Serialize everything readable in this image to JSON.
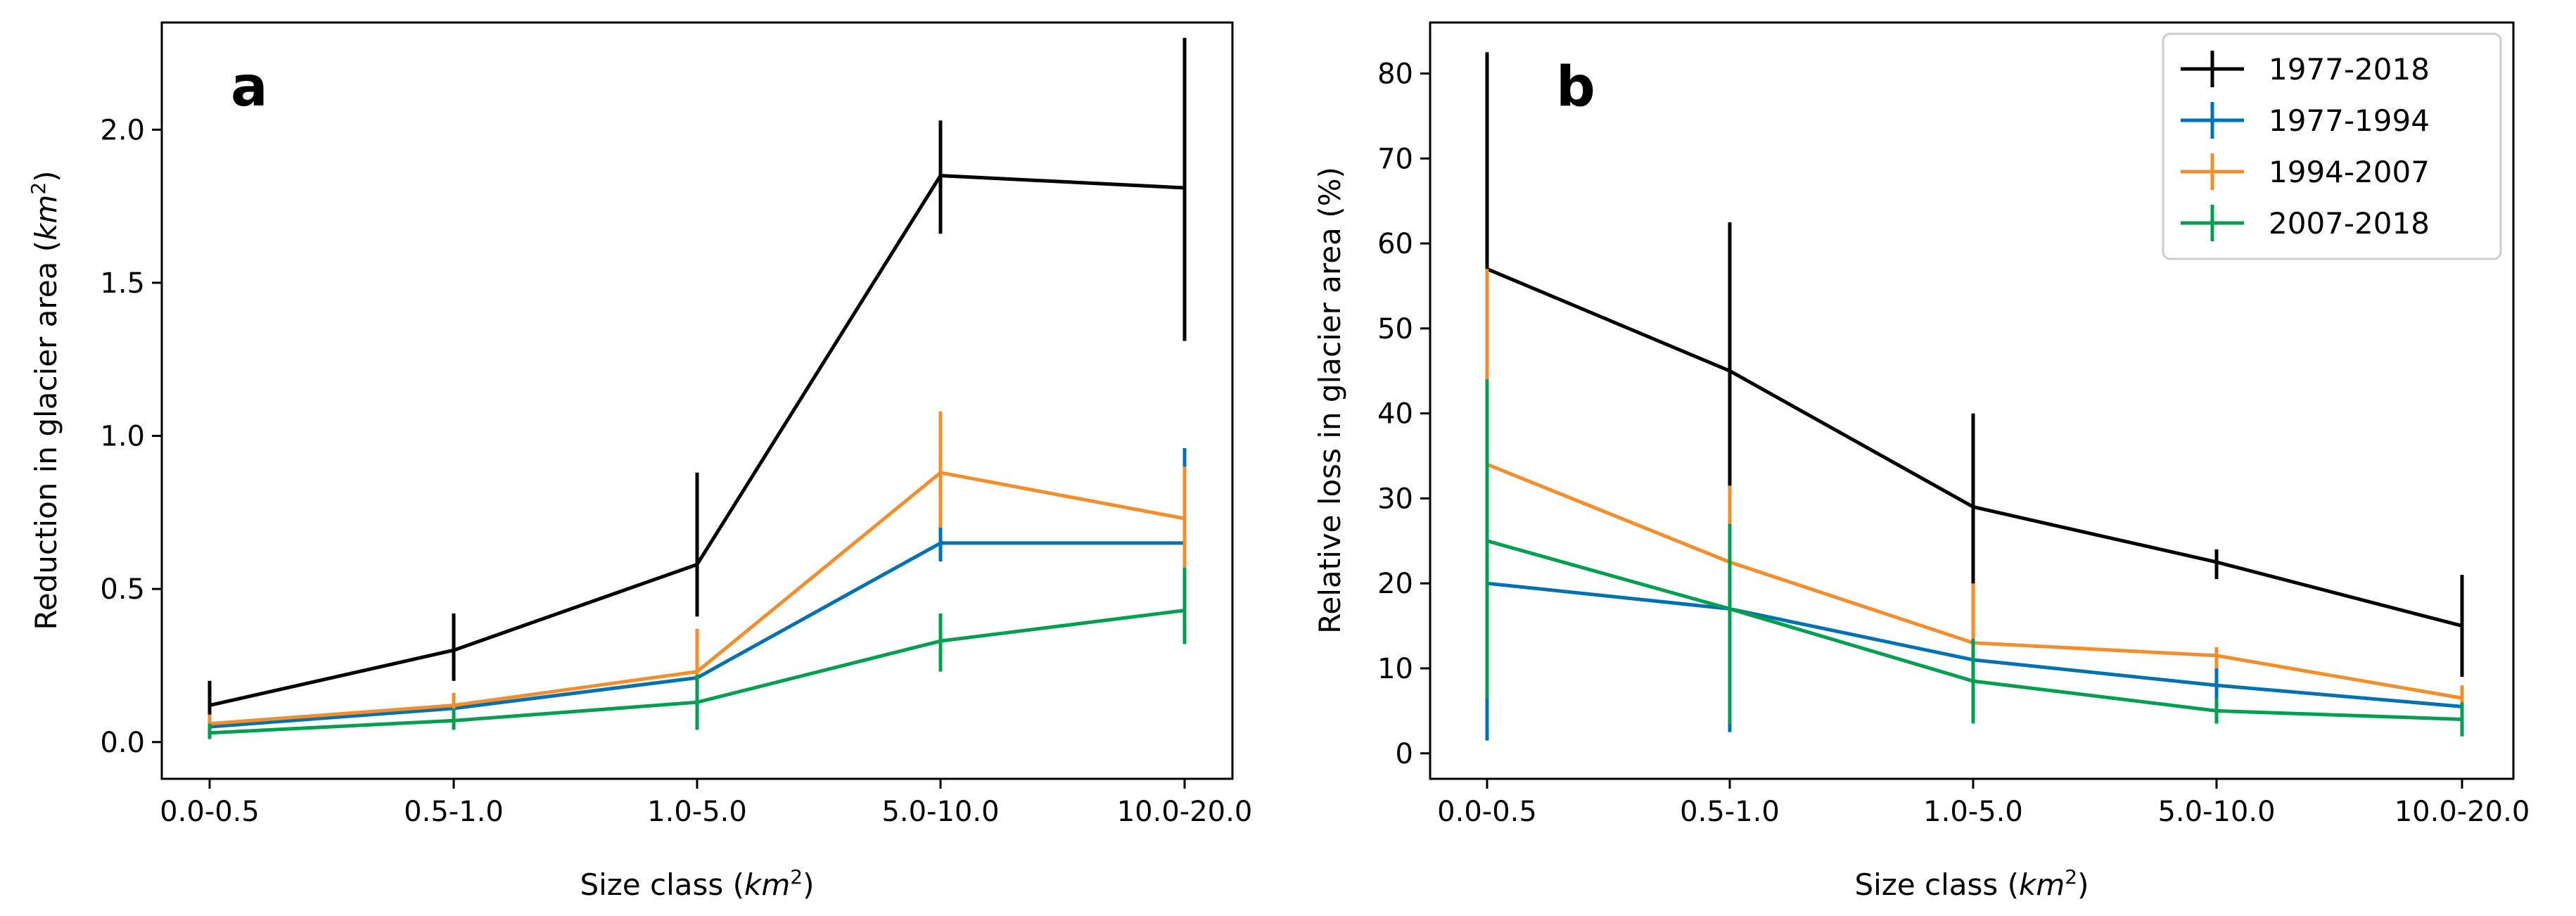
{
  "chart_data": [
    {
      "type": "line",
      "panel_label": "a",
      "categories": [
        "0.0-0.5",
        "0.5-1.0",
        "1.0-5.0",
        "5.0-10.0",
        "10.0-20.0"
      ],
      "xlabel": "Size class",
      "xlabel_unit": "km",
      "xlabel_unit_sup": "2",
      "ylabel": "Reduction in glacier area",
      "ylabel_unit": "km",
      "ylabel_unit_sup": "2",
      "ylim": [
        -0.12,
        2.35
      ],
      "yticks": [
        0.0,
        0.5,
        1.0,
        1.5,
        2.0
      ],
      "ytick_labels": [
        "0.0",
        "0.5",
        "1.0",
        "1.5",
        "2.0"
      ],
      "series": [
        {
          "name": "1977-2018",
          "color": "#000000",
          "values": [
            0.12,
            0.3,
            0.58,
            1.85,
            1.81
          ],
          "err_low": [
            0.03,
            0.2,
            0.41,
            1.66,
            1.31
          ],
          "err_high": [
            0.2,
            0.42,
            0.88,
            2.03,
            2.3
          ]
        },
        {
          "name": "1977-1994",
          "color": "#0072b2",
          "values": [
            0.05,
            0.11,
            0.21,
            0.65,
            0.65
          ],
          "err_low": [
            0.02,
            0.07,
            0.16,
            0.59,
            0.57
          ],
          "err_high": [
            0.08,
            0.16,
            0.27,
            0.72,
            0.96
          ]
        },
        {
          "name": "1994-2007",
          "color": "#f28e2b",
          "values": [
            0.06,
            0.12,
            0.23,
            0.88,
            0.73
          ],
          "err_low": [
            0.03,
            0.08,
            0.17,
            0.7,
            0.57
          ],
          "err_high": [
            0.09,
            0.16,
            0.37,
            1.08,
            0.9
          ]
        },
        {
          "name": "2007-2018",
          "color": "#00a050",
          "values": [
            0.03,
            0.07,
            0.13,
            0.33,
            0.43
          ],
          "err_low": [
            0.01,
            0.04,
            0.04,
            0.23,
            0.32
          ],
          "err_high": [
            0.06,
            0.11,
            0.22,
            0.42,
            0.57
          ]
        }
      ]
    },
    {
      "type": "line",
      "panel_label": "b",
      "categories": [
        "0.0-0.5",
        "0.5-1.0",
        "1.0-5.0",
        "5.0-10.0",
        "10.0-20.0"
      ],
      "xlabel": "Size class",
      "xlabel_unit": "km",
      "xlabel_unit_sup": "2",
      "ylabel": "Relative loss in glacier area (%)",
      "ylim": [
        -3,
        86
      ],
      "yticks": [
        0,
        10,
        20,
        30,
        40,
        50,
        60,
        70,
        80
      ],
      "ytick_labels": [
        "0",
        "10",
        "20",
        "30",
        "40",
        "50",
        "60",
        "70",
        "80"
      ],
      "legend_position": "top-right",
      "series": [
        {
          "name": "1977-2018",
          "color": "#000000",
          "values": [
            57,
            45,
            29,
            22.5,
            15
          ],
          "err_low": [
            31,
            28,
            18,
            20.5,
            9
          ],
          "err_high": [
            82.5,
            62.5,
            40,
            24,
            21
          ]
        },
        {
          "name": "1977-1994",
          "color": "#0072b2",
          "values": [
            20,
            17,
            11,
            8,
            5.5
          ],
          "err_low": [
            1.5,
            2.5,
            5,
            6,
            3
          ],
          "err_high": [
            40,
            31,
            17,
            10,
            7.5
          ]
        },
        {
          "name": "1994-2007",
          "color": "#f28e2b",
          "values": [
            34,
            22.5,
            13,
            11.5,
            6.5
          ],
          "err_low": [
            25,
            15,
            9,
            10,
            5
          ],
          "err_high": [
            57,
            31.5,
            20,
            12.5,
            8
          ]
        },
        {
          "name": "2007-2018",
          "color": "#00a050",
          "values": [
            25,
            17,
            8.5,
            5,
            4
          ],
          "err_low": [
            6.5,
            3.5,
            3.5,
            3.5,
            2
          ],
          "err_high": [
            44,
            27,
            13.5,
            6.5,
            6
          ]
        }
      ]
    }
  ]
}
